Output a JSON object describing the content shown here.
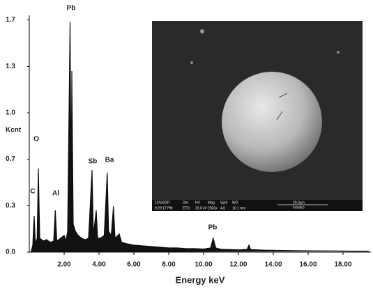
{
  "chart_data": {
    "type": "area",
    "xlabel": "Energy keV",
    "ylabel": "Kcnt",
    "color": "#111111",
    "xlim": [
      0,
      19.6
    ],
    "ylim": [
      0,
      1.7
    ],
    "xticks": [
      {
        "value": 2,
        "label": "2.00"
      },
      {
        "value": 4,
        "label": "4.00"
      },
      {
        "value": 6,
        "label": "6.00"
      },
      {
        "value": 8,
        "label": "8.00"
      },
      {
        "value": 10,
        "label": "10.00"
      },
      {
        "value": 12,
        "label": "12.00"
      },
      {
        "value": 14,
        "label": "14.00"
      },
      {
        "value": 16,
        "label": "16.00"
      },
      {
        "value": 18,
        "label": "18.00"
      }
    ],
    "yticks": [
      {
        "value": 0,
        "label": "0.0"
      },
      {
        "value": 0.333,
        "label": "0.3"
      },
      {
        "value": 0.667,
        "label": "0.7"
      },
      {
        "value": 1,
        "label": "1.0"
      },
      {
        "value": 1.333,
        "label": "1.3"
      },
      {
        "value": 1.667,
        "label": "1.7"
      }
    ],
    "x": [
      0.1,
      0.2,
      0.28,
      0.35,
      0.45,
      0.52,
      0.6,
      0.8,
      1.0,
      1.2,
      1.4,
      1.49,
      1.58,
      1.8,
      2.0,
      2.1,
      2.2,
      2.34,
      2.4,
      2.44,
      2.52,
      2.65,
      2.8,
      3.0,
      3.2,
      3.4,
      3.6,
      3.68,
      3.84,
      3.92,
      4.1,
      4.3,
      4.47,
      4.55,
      4.7,
      4.83,
      4.92,
      5.16,
      5.3,
      5.6,
      6.0,
      6.5,
      7.0,
      7.5,
      8.0,
      8.5,
      9.0,
      9.5,
      10.0,
      10.4,
      10.55,
      10.7,
      11.0,
      11.5,
      12.0,
      12.5,
      12.6,
      12.7,
      13.5,
      14.5,
      15.5,
      16.5,
      17.5,
      18.5,
      19.5
    ],
    "values": [
      0.0,
      0.05,
      0.26,
      0.06,
      0.1,
      0.6,
      0.1,
      0.08,
      0.09,
      0.07,
      0.08,
      0.3,
      0.08,
      0.1,
      0.12,
      0.08,
      0.15,
      1.65,
      0.4,
      1.3,
      0.2,
      0.15,
      0.12,
      0.1,
      0.09,
      0.1,
      0.59,
      0.12,
      0.3,
      0.1,
      0.1,
      0.12,
      0.57,
      0.15,
      0.12,
      0.33,
      0.1,
      0.13,
      0.07,
      0.06,
      0.05,
      0.045,
      0.04,
      0.035,
      0.03,
      0.03,
      0.025,
      0.025,
      0.022,
      0.03,
      0.1,
      0.03,
      0.02,
      0.018,
      0.016,
      0.02,
      0.05,
      0.018,
      0.014,
      0.012,
      0.01,
      0.009,
      0.008,
      0.007,
      0.006
    ],
    "annotations": [
      "C",
      "O",
      "Al",
      "Pb",
      "Sb",
      "Ba",
      "Pb"
    ]
  },
  "inset_image": {
    "info": [
      "12/6/2007",
      "9:29:17 PM",
      "Det",
      "ETD",
      "HV",
      "20.0 kV",
      "Mag",
      "2500x",
      "Spot",
      "4.0",
      "WD",
      "10.1 mm",
      "20.0µm",
      "inmetro"
    ]
  }
}
